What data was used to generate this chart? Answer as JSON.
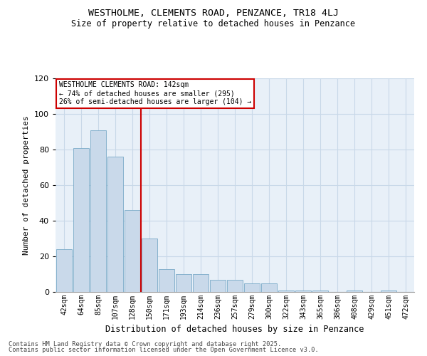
{
  "title1": "WESTHOLME, CLEMENTS ROAD, PENZANCE, TR18 4LJ",
  "title2": "Size of property relative to detached houses in Penzance",
  "xlabel": "Distribution of detached houses by size in Penzance",
  "ylabel": "Number of detached properties",
  "categories": [
    "42sqm",
    "64sqm",
    "85sqm",
    "107sqm",
    "128sqm",
    "150sqm",
    "171sqm",
    "193sqm",
    "214sqm",
    "236sqm",
    "257sqm",
    "279sqm",
    "300sqm",
    "322sqm",
    "343sqm",
    "365sqm",
    "386sqm",
    "408sqm",
    "429sqm",
    "451sqm",
    "472sqm"
  ],
  "values": [
    24,
    81,
    91,
    76,
    46,
    30,
    13,
    10,
    10,
    7,
    7,
    5,
    5,
    1,
    1,
    1,
    0,
    1,
    0,
    1,
    0
  ],
  "bar_color": "#c9d9ea",
  "bar_edge_color": "#7aaac8",
  "vline_color": "#cc0000",
  "vline_pos": 4.5,
  "annotation_text_line1": "WESTHOLME CLEMENTS ROAD: 142sqm",
  "annotation_text_line2": "← 74% of detached houses are smaller (295)",
  "annotation_text_line3": "26% of semi-detached houses are larger (104) →",
  "ylim": [
    0,
    120
  ],
  "yticks": [
    0,
    20,
    40,
    60,
    80,
    100,
    120
  ],
  "grid_color": "#c8d8e8",
  "bg_color": "#e8f0f8",
  "footer1": "Contains HM Land Registry data © Crown copyright and database right 2025.",
  "footer2": "Contains public sector information licensed under the Open Government Licence v3.0."
}
